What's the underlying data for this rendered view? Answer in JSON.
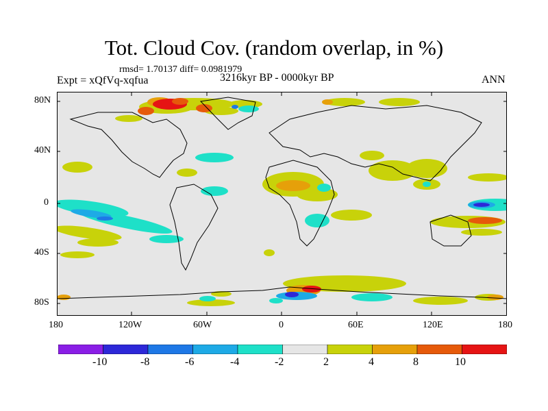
{
  "title": "Tot. Cloud Cov. (random overlap, in %)",
  "stats_line": "rmsd= 1.70137 diff= 0.0981979",
  "experiment": "Expt = xQfVq-xqfua",
  "period": "3216kyr BP - 0000kyr BP",
  "season": "ANN",
  "map": {
    "projection": "cylindrical equidistant",
    "background_color": "#e6e6e6",
    "coastline_color": "#000000",
    "lat_ticks": [
      "80N",
      "40N",
      "0",
      "40S",
      "80S"
    ],
    "lon_ticks": [
      "180",
      "120W",
      "60W",
      "0",
      "60E",
      "120E",
      "180"
    ]
  },
  "colorbar": {
    "colors": [
      "#8a1ee6",
      "#2d28d8",
      "#1e78e6",
      "#1eaae6",
      "#1ee0c8",
      "#e6e6e6",
      "#c8d20a",
      "#e6a00a",
      "#e65a0a",
      "#e61414"
    ],
    "labels": [
      "-10",
      "-8",
      "-6",
      "-4",
      "-2",
      "2",
      "4",
      "8",
      "10"
    ]
  }
}
